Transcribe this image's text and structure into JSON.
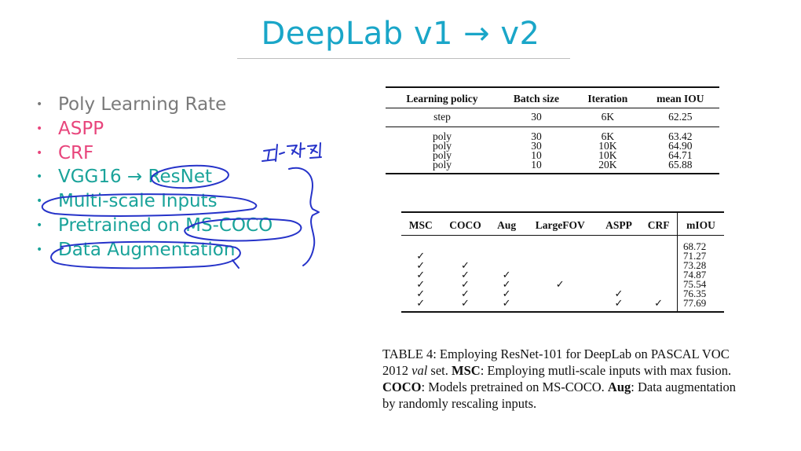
{
  "slide": {
    "title": "DeepLab v1 → v2"
  },
  "bullets": [
    {
      "text": "Poly Learning Rate",
      "color": "#7a7a7a",
      "bullet_color": "#7a7a7a"
    },
    {
      "text": "ASPP",
      "color": "#e8457c",
      "bullet_color": "#e8457c"
    },
    {
      "text": "CRF",
      "color": "#e8457c",
      "bullet_color": "#e8457c"
    },
    {
      "text": "VGG16 → ResNet",
      "color": "#1aa39a",
      "bullet_color": "#1aa39a"
    },
    {
      "text": "Multi-scale Inputs",
      "color": "#1aa39a",
      "bullet_color": "#1aa39a"
    },
    {
      "text": "Pretrained on MS-COCO",
      "color": "#1aa39a",
      "bullet_color": "#1aa39a"
    },
    {
      "text": "Data Augmentation",
      "color": "#1aa39a",
      "bullet_color": "#1aa39a"
    }
  ],
  "annotation": {
    "handwriting": "드는 차이",
    "ink_color": "#2633c9"
  },
  "table1": {
    "headers": [
      "Learning policy",
      "Batch size",
      "Iteration",
      "mean IOU"
    ],
    "rows": [
      [
        "step",
        "30",
        "6K",
        "62.25"
      ],
      [
        "poly",
        "30",
        "6K",
        "63.42"
      ],
      [
        "poly",
        "30",
        "10K",
        "64.90"
      ],
      [
        "poly",
        "10",
        "10K",
        "64.71"
      ],
      [
        "poly",
        "10",
        "20K",
        "65.88"
      ]
    ]
  },
  "table2": {
    "headers": [
      "MSC",
      "COCO",
      "Aug",
      "LargeFOV",
      "ASPP",
      "CRF",
      "mIOU"
    ],
    "check": "✓",
    "rows": [
      [
        "",
        "",
        "",
        "",
        "",
        "",
        "68.72"
      ],
      [
        "✓",
        "",
        "",
        "",
        "",
        "",
        "71.27"
      ],
      [
        "✓",
        "✓",
        "",
        "",
        "",
        "",
        "73.28"
      ],
      [
        "✓",
        "✓",
        "✓",
        "",
        "",
        "",
        "74.87"
      ],
      [
        "✓",
        "✓",
        "✓",
        "✓",
        "",
        "",
        "75.54"
      ],
      [
        "✓",
        "✓",
        "✓",
        "",
        "✓",
        "",
        "76.35"
      ],
      [
        "✓",
        "✓",
        "✓",
        "",
        "✓",
        "✓",
        "77.69"
      ]
    ]
  },
  "caption": {
    "p1": "TABLE 4: Employing ResNet-101 for DeepLab on PASCAL VOC 2012 ",
    "val": "val",
    "p2": " set. ",
    "msc": "MSC",
    "p3": ": Employing mutli-scale inputs with max fusion. ",
    "coco": "COCO",
    "p4": ": Models pretrained on MS-COCO. ",
    "aug": "Aug",
    "p5": ": Data augmentation by randomly rescaling inputs."
  }
}
